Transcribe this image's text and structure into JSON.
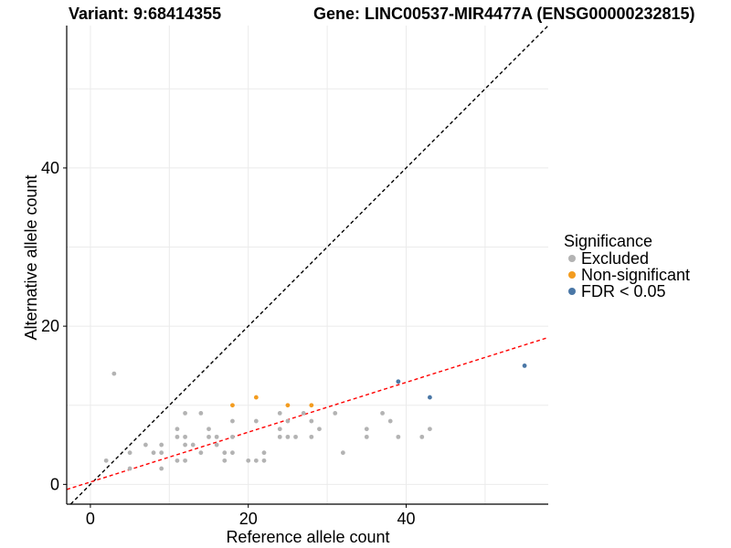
{
  "chart_data": {
    "type": "scatter",
    "title_left": "Variant: 9:68414355",
    "title_right": "Gene: LINC00537-MIR4477A (ENSG00000232815)",
    "xlabel": "Reference allele count",
    "ylabel": "Alternative allele count",
    "xlim": [
      -3,
      58
    ],
    "ylim": [
      -2.5,
      58
    ],
    "x_ticks": [
      0,
      20,
      40
    ],
    "y_ticks": [
      0,
      20,
      40
    ],
    "reference_lines": [
      {
        "name": "identity",
        "intercept": 0,
        "slope": 1,
        "color": "#000000",
        "style": "dashed"
      },
      {
        "name": "fit",
        "intercept": 0.3,
        "slope": 0.315,
        "color": "#ff0000",
        "style": "dashed"
      }
    ],
    "legend": {
      "title": "Significance",
      "position": "right",
      "entries": [
        {
          "label": "Excluded",
          "color": "#b3b3b3"
        },
        {
          "label": "Non-significant",
          "color": "#f39c1f"
        },
        {
          "label": "FDR < 0.05",
          "color": "#4a77a6"
        }
      ]
    },
    "series": [
      {
        "name": "Excluded",
        "color": "#b3b3b3",
        "points": [
          [
            2,
            3
          ],
          [
            3,
            14
          ],
          [
            5,
            4
          ],
          [
            5,
            2
          ],
          [
            7,
            5
          ],
          [
            8,
            4
          ],
          [
            9,
            5
          ],
          [
            9,
            4
          ],
          [
            9,
            2
          ],
          [
            11,
            7
          ],
          [
            11,
            6
          ],
          [
            11,
            3
          ],
          [
            12,
            9
          ],
          [
            12,
            6
          ],
          [
            12,
            5
          ],
          [
            12,
            3
          ],
          [
            13,
            5
          ],
          [
            14,
            9
          ],
          [
            14,
            4
          ],
          [
            15,
            7
          ],
          [
            15,
            6
          ],
          [
            16,
            6
          ],
          [
            16,
            5
          ],
          [
            17,
            4
          ],
          [
            17,
            3
          ],
          [
            18,
            8
          ],
          [
            18,
            6
          ],
          [
            18,
            4
          ],
          [
            20,
            3
          ],
          [
            21,
            8
          ],
          [
            21,
            3
          ],
          [
            22,
            4
          ],
          [
            22,
            3
          ],
          [
            24,
            9
          ],
          [
            24,
            7
          ],
          [
            24,
            6
          ],
          [
            25,
            8
          ],
          [
            25,
            6
          ],
          [
            26,
            6
          ],
          [
            27,
            9
          ],
          [
            28,
            8
          ],
          [
            28,
            6
          ],
          [
            29,
            7
          ],
          [
            31,
            9
          ],
          [
            32,
            4
          ],
          [
            35,
            7
          ],
          [
            35,
            6
          ],
          [
            37,
            9
          ],
          [
            38,
            8
          ],
          [
            39,
            6
          ],
          [
            42,
            6
          ],
          [
            43,
            7
          ]
        ]
      },
      {
        "name": "Non-significant",
        "color": "#f39c1f",
        "points": [
          [
            18,
            10
          ],
          [
            21,
            11
          ],
          [
            25,
            10
          ],
          [
            28,
            10
          ]
        ]
      },
      {
        "name": "FDR < 0.05",
        "color": "#4a77a6",
        "points": [
          [
            39,
            13
          ],
          [
            43,
            11
          ],
          [
            55,
            15
          ]
        ]
      }
    ]
  }
}
